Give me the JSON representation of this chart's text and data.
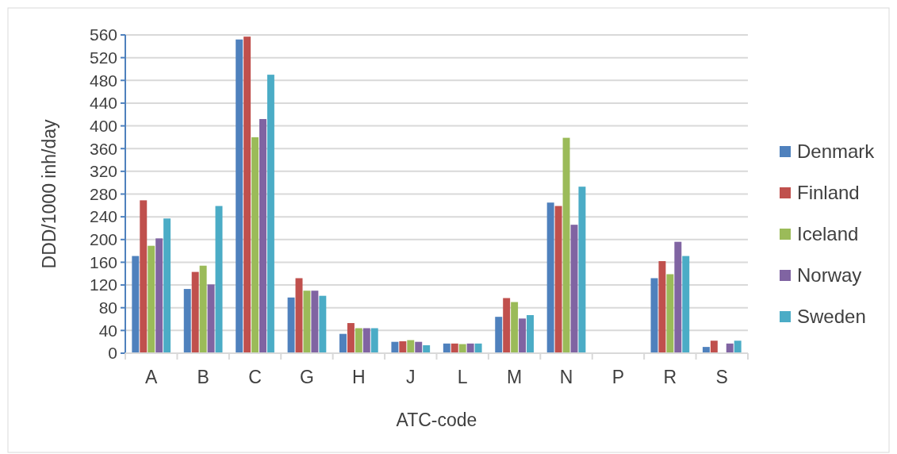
{
  "chart_data": {
    "type": "bar",
    "xlabel": "ATC-code",
    "ylabel": "DDD/1000 inh/day",
    "categories": [
      "A",
      "B",
      "C",
      "G",
      "H",
      "J",
      "L",
      "M",
      "N",
      "P",
      "R",
      "S"
    ],
    "series": [
      {
        "name": "Denmark",
        "color": "#4f81bd",
        "values": [
          171,
          113,
          552,
          98,
          34,
          20,
          17,
          64,
          265,
          null,
          132,
          11
        ]
      },
      {
        "name": "Finland",
        "color": "#c0504d",
        "values": [
          269,
          143,
          557,
          132,
          53,
          21,
          17,
          97,
          259,
          null,
          162,
          22
        ]
      },
      {
        "name": "Iceland",
        "color": "#9bbb59",
        "values": [
          189,
          154,
          380,
          110,
          44,
          23,
          16,
          90,
          379,
          null,
          139,
          null
        ]
      },
      {
        "name": "Norway",
        "color": "#8064a2",
        "values": [
          202,
          121,
          412,
          110,
          44,
          20,
          17,
          61,
          226,
          null,
          196,
          17
        ]
      },
      {
        "name": "Sweden",
        "color": "#4bacc6",
        "values": [
          237,
          259,
          490,
          101,
          44,
          14,
          17,
          67,
          293,
          null,
          171,
          22
        ]
      }
    ],
    "ylim": [
      0,
      560
    ],
    "yticks": [
      0,
      40,
      80,
      120,
      160,
      200,
      240,
      280,
      320,
      360,
      400,
      440,
      480,
      520,
      560
    ],
    "grid": "y",
    "legend": "right"
  }
}
